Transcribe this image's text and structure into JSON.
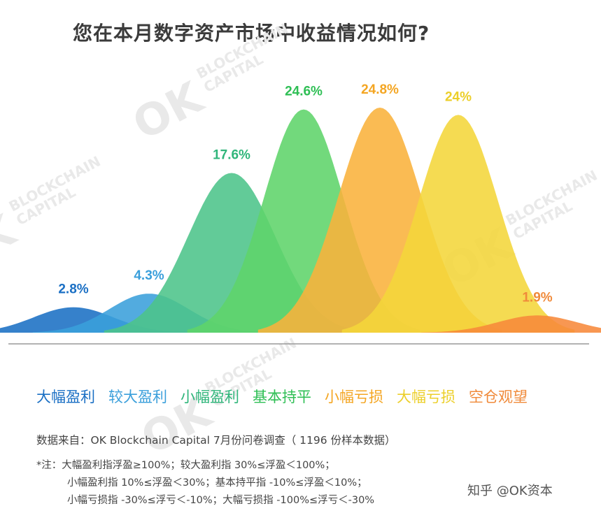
{
  "title": "您在本月数字资产市场中收益情况如何?",
  "chart_data": {
    "type": "area",
    "categories": [
      "大幅盈利",
      "较大盈利",
      "小幅盈利",
      "基本持平",
      "小幅亏损",
      "大幅亏损",
      "空仓观望"
    ],
    "values": [
      2.8,
      4.3,
      17.6,
      24.6,
      24.8,
      24,
      1.9
    ],
    "value_labels": [
      "2.8%",
      "4.3%",
      "17.6%",
      "24.6%",
      "24.8%",
      "24%",
      "1.9%"
    ],
    "colors": [
      "#1a6fc4",
      "#3a9fdb",
      "#4cc48a",
      "#5fd46a",
      "#f9b23b",
      "#f4d63a",
      "#f7893a"
    ],
    "label_colors": [
      "#1a6fc4",
      "#3a9fdb",
      "#2fb57a",
      "#2fbf55",
      "#f4a623",
      "#eccf2a",
      "#f08a3a"
    ],
    "legend": "bottom"
  },
  "source": "数据来自：OK Blockchain Capital 7月份问卷调查（ 1196 份样本数据）",
  "notes": [
    "*注：大幅盈利指浮盈≥100%；较大盈利指 30%≤浮盈＜100%；",
    "小幅盈利指 10%≤浮盈＜30%；基本持平指 -10%≤浮盈＜10%；",
    "小幅亏损指 -30%≤浮亏＜-10%；大幅亏损指 -100%≤浮亏＜-30%"
  ],
  "watermark": {
    "brand": "OK",
    "sub1": "BLOCKCHAIN",
    "sub2": "CAPITAL",
    "zhihu": "知乎 @OK资本"
  }
}
